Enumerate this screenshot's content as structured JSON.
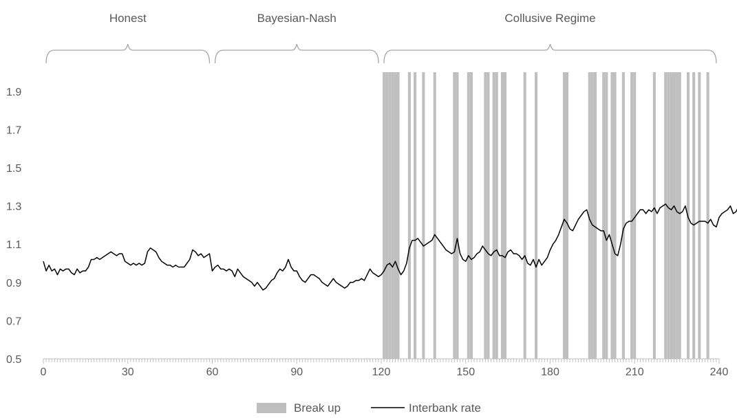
{
  "chart_data": {
    "type": "line",
    "xlim": [
      0,
      240
    ],
    "ylim": [
      0.5,
      2.0
    ],
    "x_ticks": [
      "0",
      "30",
      "60",
      "90",
      "120",
      "150",
      "180",
      "210",
      "240"
    ],
    "y_ticks": [
      "0.5",
      "0.7",
      "0.9",
      "1.1",
      "1.3",
      "1.5",
      "1.7",
      "1.9"
    ],
    "grid": false,
    "legend_position": "bottom",
    "regimes": [
      {
        "label": "Honest",
        "start": 0,
        "end": 60
      },
      {
        "label": "Bayesian-Nash",
        "start": 60,
        "end": 120
      },
      {
        "label": "Collusive Regime",
        "start": 120,
        "end": 240
      }
    ],
    "series": [
      {
        "name": "Break up",
        "kind": "shaded-bars",
        "color": "#bfbfbf",
        "periods": [
          121,
          122,
          123,
          124,
          125,
          126,
          130,
          132,
          135,
          139,
          146,
          147,
          151,
          152,
          157,
          158,
          160,
          161,
          163,
          164,
          171,
          175,
          185,
          186,
          194,
          195,
          196,
          199,
          200,
          202,
          203,
          206,
          209,
          210,
          217,
          221,
          222,
          223,
          224,
          225,
          226,
          229,
          231,
          233,
          236
        ]
      },
      {
        "name": "Interbank rate",
        "kind": "line",
        "color": "#000000",
        "x_start": 0,
        "values": [
          1.01,
          0.96,
          0.99,
          0.96,
          0.97,
          0.94,
          0.97,
          0.96,
          0.97,
          0.97,
          0.95,
          0.94,
          0.97,
          0.95,
          0.96,
          0.96,
          0.98,
          1.02,
          1.02,
          1.03,
          1.02,
          1.03,
          1.04,
          1.05,
          1.06,
          1.05,
          1.04,
          1.05,
          1.05,
          1.01,
          1.0,
          0.99,
          1.0,
          0.99,
          1.0,
          0.99,
          1.0,
          1.06,
          1.08,
          1.07,
          1.06,
          1.03,
          1.01,
          1.0,
          0.99,
          0.99,
          0.98,
          0.99,
          0.98,
          0.98,
          0.98,
          1.0,
          1.02,
          1.07,
          1.06,
          1.04,
          1.05,
          1.03,
          1.04,
          1.05,
          0.96,
          0.98,
          0.99,
          0.97,
          0.97,
          0.96,
          0.97,
          0.96,
          0.93,
          0.97,
          0.95,
          0.93,
          0.92,
          0.91,
          0.9,
          0.88,
          0.9,
          0.88,
          0.86,
          0.87,
          0.89,
          0.91,
          0.92,
          0.95,
          0.97,
          0.96,
          0.98,
          1.02,
          0.98,
          0.96,
          0.96,
          0.93,
          0.91,
          0.9,
          0.92,
          0.94,
          0.94,
          0.93,
          0.92,
          0.9,
          0.89,
          0.88,
          0.9,
          0.92,
          0.9,
          0.89,
          0.88,
          0.87,
          0.88,
          0.9,
          0.9,
          0.91,
          0.91,
          0.92,
          0.91,
          0.94,
          0.97,
          0.95,
          0.94,
          0.93,
          0.94,
          0.96,
          0.99,
          1.0,
          0.98,
          1.01,
          0.97,
          0.94,
          0.96,
          1.0,
          1.08,
          1.12,
          1.12,
          1.13,
          1.11,
          1.09,
          1.1,
          1.11,
          1.12,
          1.15,
          1.13,
          1.11,
          1.09,
          1.07,
          1.06,
          1.05,
          1.06,
          1.13,
          1.05,
          1.02,
          1.01,
          1.04,
          1.02,
          1.03,
          1.05,
          1.06,
          1.09,
          1.07,
          1.05,
          1.04,
          1.06,
          1.07,
          1.04,
          1.04,
          1.03,
          1.06,
          1.07,
          1.05,
          1.05,
          1.04,
          1.02,
          1.04,
          1.0,
          0.99,
          1.02,
          0.98,
          1.02,
          0.99,
          1.01,
          1.03,
          1.07,
          1.1,
          1.12,
          1.15,
          1.19,
          1.23,
          1.21,
          1.18,
          1.17,
          1.2,
          1.23,
          1.25,
          1.27,
          1.28,
          1.23,
          1.2,
          1.19,
          1.18,
          1.17,
          1.17,
          1.12,
          1.15,
          1.1,
          1.05,
          1.04,
          1.1,
          1.18,
          1.21,
          1.22,
          1.22,
          1.24,
          1.26,
          1.28,
          1.28,
          1.26,
          1.28,
          1.27,
          1.29,
          1.26,
          1.29,
          1.3,
          1.31,
          1.29,
          1.28,
          1.3,
          1.27,
          1.26,
          1.27,
          1.3,
          1.24,
          1.21,
          1.2,
          1.21,
          1.22,
          1.22,
          1.22,
          1.21,
          1.23,
          1.2,
          1.19,
          1.24,
          1.26,
          1.27,
          1.28,
          1.3,
          1.26,
          1.27,
          1.3,
          1.3,
          1.28
        ]
      }
    ]
  }
}
